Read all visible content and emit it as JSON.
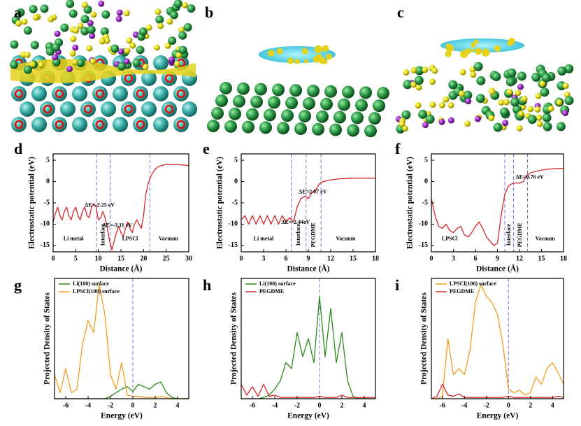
{
  "images": [
    {
      "panel": "a"
    },
    {
      "panel": "b"
    },
    {
      "panel": "c"
    }
  ],
  "chart_data": [
    {
      "panel": "d",
      "type": "line",
      "xlabel": "Distance (Å)",
      "ylabel": "Electrostatic potential (eV)",
      "xlim": [
        0,
        30
      ],
      "ylim": [
        -16.5,
        6.5
      ],
      "xticks": [
        0,
        5,
        10,
        15,
        20,
        25,
        30
      ],
      "yticks": [
        5,
        0,
        -5,
        -10,
        -15
      ],
      "x": [
        0,
        0.5,
        1,
        1.5,
        2,
        2.5,
        3,
        3.5,
        4,
        4.5,
        5,
        5.5,
        6,
        6.5,
        7,
        7.5,
        8,
        8.5,
        9,
        9.5,
        10,
        10.5,
        11,
        11.5,
        12,
        12.5,
        13,
        13.5,
        14,
        14.5,
        15,
        15.5,
        16,
        16.5,
        17,
        17.5,
        18,
        18.5,
        19,
        19.5,
        20,
        20.5,
        21,
        21.5,
        22,
        22.5,
        23,
        23.5,
        24,
        24.5,
        25,
        25.5,
        26,
        26.5,
        27,
        27.5,
        28,
        28.5,
        29,
        29.5,
        30
      ],
      "series": [
        {
          "color": "#d62728",
          "values": [
            -9.5,
            -7.5,
            -6,
            -8,
            -9,
            -7,
            -6,
            -8,
            -9,
            -7,
            -6,
            -8,
            -9,
            -7,
            -6,
            -8,
            -8.5,
            -6,
            -5.2,
            -6,
            -9,
            -8.5,
            -7,
            -8.5,
            -11,
            -14,
            -16,
            -14,
            -12,
            -10.5,
            -12,
            -13,
            -11,
            -9.5,
            -11,
            -12,
            -10,
            -9,
            -10,
            -11,
            -8,
            -3,
            -0.5,
            1,
            2,
            2.8,
            3.3,
            3.6,
            3.8,
            3.9,
            4,
            4,
            4,
            4,
            4,
            4,
            4,
            3.9,
            3.9,
            3.8,
            3.8
          ]
        }
      ],
      "vlines": [
        9.6,
        12.6,
        21.4
      ],
      "vline_color": "#8a6fd6",
      "annotations": [
        "ΔE=-2.25 eV",
        "ΔE=-3.11 eV",
        "Li metal",
        "Interface",
        "LPSCl",
        "Vacuum"
      ]
    },
    {
      "panel": "e",
      "type": "line",
      "xlabel": "Distance (Å)",
      "ylabel": "Electrostatic potential (eV)",
      "xlim": [
        0,
        18
      ],
      "ylim": [
        -16.5,
        6.5
      ],
      "xticks": [
        0,
        3,
        6,
        9,
        12,
        15,
        18
      ],
      "yticks": [
        5,
        0,
        -5,
        -10,
        -15
      ],
      "x": [
        0,
        0.5,
        1,
        1.5,
        2,
        2.5,
        3,
        3.5,
        4,
        4.5,
        5,
        5.5,
        6,
        6.5,
        7,
        7.5,
        8,
        8.5,
        9,
        9.5,
        10,
        10.5,
        11,
        11.5,
        12,
        12.5,
        13,
        13.5,
        14,
        14.5,
        15,
        15.5,
        16,
        16.5,
        17,
        17.5,
        18
      ],
      "series": [
        {
          "color": "#d62728",
          "values": [
            -9,
            -8,
            -10,
            -8,
            -10,
            -8,
            -10,
            -8,
            -10,
            -8,
            -10,
            -8,
            -9.5,
            -8.5,
            -9.5,
            -6,
            -4,
            -3.5,
            -4,
            -2.5,
            -2,
            -0.5,
            0,
            0.2,
            0.4,
            0.5,
            0.6,
            0.7,
            0.7,
            0.8,
            0.8,
            0.8,
            0.8,
            0.8,
            0.8,
            0.8,
            0.8
          ]
        }
      ],
      "vlines": [
        6.7,
        8.7,
        10.7
      ],
      "vline_color": "#8a6fd6",
      "annotations": [
        "ΔE=2.07 eV",
        "ΔE=-2.44eV",
        "Li metal",
        "Interface",
        "PEGDME",
        "Vacuum"
      ]
    },
    {
      "panel": "f",
      "type": "line",
      "xlabel": "Distance (Å)",
      "ylabel": "Electrostatic potential (eV)",
      "xlim": [
        0,
        18
      ],
      "ylim": [
        -16.5,
        6.5
      ],
      "xticks": [
        0,
        3,
        6,
        9,
        12,
        15,
        18
      ],
      "yticks": [
        5,
        0,
        -5,
        -10,
        -15
      ],
      "x": [
        0,
        0.5,
        1,
        1.5,
        2,
        2.5,
        3,
        3.5,
        4,
        4.5,
        5,
        5.5,
        6,
        6.5,
        7,
        7.5,
        8,
        8.5,
        9,
        9.5,
        10,
        10.5,
        11,
        11.5,
        12,
        12.5,
        13,
        13.5,
        14,
        14.5,
        15,
        15.5,
        16,
        16.5,
        17,
        17.5,
        18
      ],
      "series": [
        {
          "color": "#d62728",
          "values": [
            -4,
            -8,
            -10.5,
            -11,
            -10,
            -11.5,
            -12,
            -11,
            -10.5,
            -12.5,
            -13,
            -12,
            -10.5,
            -9.5,
            -11,
            -13,
            -14,
            -15,
            -14.5,
            -8,
            -3,
            -1,
            -0.5,
            -0.3,
            -0.4,
            0,
            1.5,
            2,
            2.3,
            2.5,
            2.7,
            2.8,
            2.9,
            3,
            3,
            3.1,
            3.1
          ]
        }
      ],
      "vlines": [
        10,
        11.2,
        13.1
      ],
      "vline_color": "#8a6fd6",
      "annotations": [
        "ΔE=0.76 eV",
        "LPSCl",
        "Interface",
        "PEGDME",
        "Vacuum"
      ]
    },
    {
      "panel": "g",
      "type": "line",
      "xlabel": "Energy (eV)",
      "ylabel": "Projected Density of States",
      "xlim": [
        -7,
        5
      ],
      "ylim": [
        0,
        100
      ],
      "xticks": [
        -6,
        -4,
        -2,
        0,
        2,
        4
      ],
      "legend": "upper left",
      "x": [
        -7,
        -6.5,
        -6,
        -5.5,
        -5,
        -4.5,
        -4,
        -3.5,
        -3,
        -2.5,
        -2,
        -1.5,
        -1,
        -0.5,
        0,
        0.5,
        1,
        1.5,
        2,
        2.5,
        3,
        3.5,
        4,
        4.5,
        5
      ],
      "series": [
        {
          "name": "Li(100) surface",
          "color": "#2a8a1a",
          "values": [
            0,
            0,
            0,
            0,
            0,
            0,
            0,
            0,
            0,
            0,
            2,
            5,
            8,
            10,
            6,
            12,
            10,
            8,
            12,
            14,
            5,
            1,
            0,
            0,
            0
          ]
        },
        {
          "name": "LPSCl(100) surface",
          "color": "#f39c1f",
          "values": [
            20,
            5,
            25,
            5,
            8,
            45,
            65,
            55,
            95,
            70,
            20,
            8,
            30,
            3,
            2,
            2,
            1,
            1,
            1,
            2,
            1,
            0,
            0,
            0,
            0
          ]
        }
      ],
      "vlines": [
        0
      ],
      "vline_color": "#8a6fd6"
    },
    {
      "panel": "h",
      "type": "line",
      "xlabel": "Energy (eV)",
      "ylabel": "Projected Density of States",
      "xlim": [
        -7,
        5
      ],
      "ylim": [
        0,
        100
      ],
      "xticks": [
        -6,
        -4,
        -2,
        0,
        2,
        4
      ],
      "legend": "upper left",
      "x": [
        -7,
        -6.5,
        -6,
        -5.5,
        -5,
        -4.5,
        -4,
        -3.5,
        -3,
        -2.5,
        -2,
        -1.5,
        -1,
        -0.5,
        0,
        0.5,
        1,
        1.5,
        2,
        2.5,
        3,
        3.5,
        4,
        4.5,
        5
      ],
      "series": [
        {
          "name": "Li(100) surface",
          "color": "#2a8a1a",
          "values": [
            0,
            0,
            0,
            0,
            1,
            3,
            8,
            15,
            30,
            25,
            55,
            35,
            50,
            30,
            85,
            35,
            75,
            30,
            55,
            15,
            2,
            0,
            0,
            0,
            0
          ]
        },
        {
          "name": "PEGDME",
          "color": "#d62728",
          "values": [
            12,
            3,
            10,
            2,
            12,
            2,
            3,
            1,
            1,
            1,
            1,
            1,
            1,
            1,
            2,
            1,
            1,
            1,
            3,
            1,
            1,
            1,
            1,
            1,
            1
          ]
        }
      ],
      "vlines": [
        0
      ],
      "vline_color": "#8a6fd6"
    },
    {
      "panel": "i",
      "type": "line",
      "xlabel": "Energy (eV)",
      "ylabel": "Projected Density of States",
      "xlim": [
        -7,
        5
      ],
      "ylim": [
        0,
        100
      ],
      "xticks": [
        -6,
        -4,
        -2,
        0,
        2,
        4
      ],
      "legend": "upper left",
      "x": [
        -7,
        -6.5,
        -6,
        -5.5,
        -5,
        -4.5,
        -4,
        -3.5,
        -3,
        -2.5,
        -2,
        -1.5,
        -1,
        -0.5,
        0,
        0.5,
        1,
        1.5,
        2,
        2.5,
        3,
        3.5,
        4,
        4.5,
        5
      ],
      "series": [
        {
          "name": "LPSCl(100) surface",
          "color": "#f39c1f",
          "values": [
            0,
            0,
            2,
            50,
            20,
            25,
            20,
            40,
            80,
            95,
            85,
            80,
            70,
            45,
            8,
            5,
            7,
            3,
            5,
            18,
            12,
            25,
            30,
            22,
            12
          ]
        },
        {
          "name": "PEGDME",
          "color": "#d62728",
          "values": [
            0,
            2,
            12,
            3,
            2,
            4,
            1,
            1,
            1,
            1,
            1,
            1,
            1,
            1,
            2,
            1,
            1,
            1,
            1,
            1,
            1,
            1,
            1,
            2,
            1
          ]
        }
      ],
      "vlines": [
        0
      ],
      "vline_color": "#8a6fd6"
    }
  ]
}
